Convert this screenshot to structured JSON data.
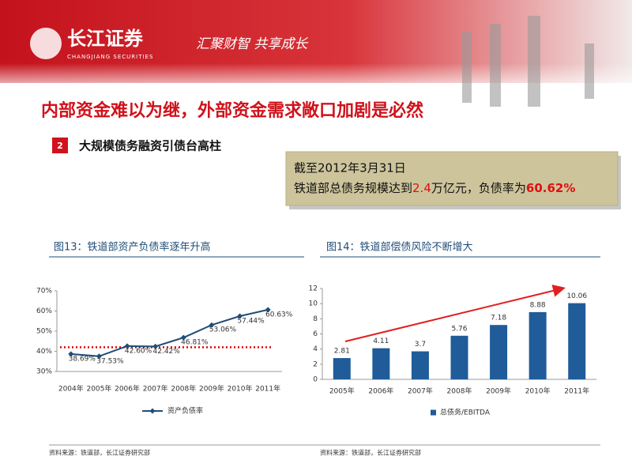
{
  "header": {
    "brand": "长江证券",
    "brand_en": "CHANGJIANG SECURITIES",
    "slogan": "汇聚财智  共享成长"
  },
  "slide": {
    "title": "内部资金难以为继，外部资金需求敞口加剧是必然",
    "section_number": "2",
    "section": "大规模债务融资引债台高柱"
  },
  "callout": {
    "line1": "截至2012年3月31日",
    "line2": [
      "铁道部总债务规模达到",
      "2.4",
      "万亿元，负债率为",
      "60.62%"
    ]
  },
  "chart_data": [
    {
      "type": "line",
      "title": "图13：铁道部资产负债率逐年升高",
      "categories": [
        "2004年",
        "2005年",
        "2006年",
        "2007年",
        "2008年",
        "2009年",
        "2010年",
        "2011年"
      ],
      "series": [
        {
          "name": "资产负债率",
          "color": "#1f4e79",
          "values": [
            38.69,
            37.53,
            42.6,
            42.42,
            46.81,
            53.06,
            57.44,
            60.63
          ],
          "value_labels": [
            "38.69%",
            "37.53%",
            "42.60%",
            "42.42%",
            "46.81%",
            "53.06%",
            "57.44%",
            "60.63%"
          ]
        }
      ],
      "ylim": [
        30,
        70
      ],
      "yticks": [
        {
          "value": 30,
          "label": "30%"
        },
        {
          "value": 40,
          "label": "40%"
        },
        {
          "value": 50,
          "label": "50%"
        },
        {
          "value": 60,
          "label": "60%"
        },
        {
          "value": 70,
          "label": "70%"
        }
      ],
      "reference_line": {
        "value": 42,
        "color": "#e00000"
      },
      "grid": false,
      "legend": "bottom"
    },
    {
      "type": "bar",
      "title": "图14：铁道部偿债风险不断增大",
      "categories": [
        "2005年",
        "2006年",
        "2007年",
        "2008年",
        "2009年",
        "2010年",
        "2011年"
      ],
      "series": [
        {
          "name": "总债务/EBITDA",
          "color": "#1f5c99",
          "values": [
            2.81,
            4.11,
            3.7,
            5.76,
            7.18,
            8.88,
            10.06
          ]
        }
      ],
      "ylim": [
        0,
        12
      ],
      "yticks": [
        0,
        2,
        4,
        6,
        8,
        10,
        12
      ],
      "grid": false,
      "legend": "bottom"
    }
  ],
  "sources": [
    "资料来源：铁道部，长江证券研究部",
    "资料来源：铁道部，长江证券研究部"
  ]
}
